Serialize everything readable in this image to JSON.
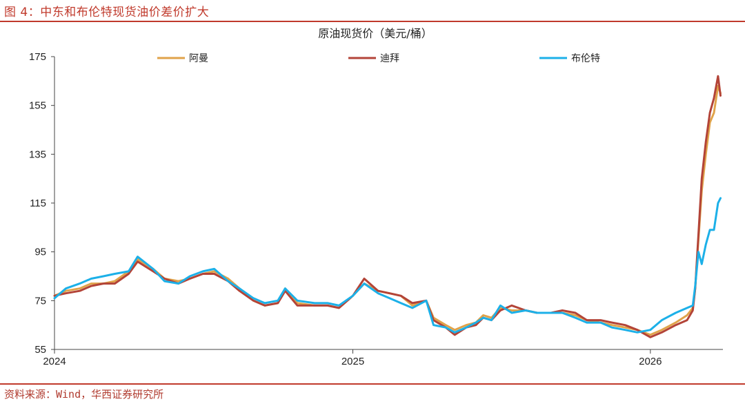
{
  "figure_title": "图 4：中东和布伦特现货油价差价扩大",
  "source": "资料来源：Wind，华西证券研究所",
  "chart_data": {
    "type": "line",
    "title": "原油现货价（美元/桶）",
    "xlabel": "",
    "ylabel": "",
    "x_ticks": [
      "2024",
      "2025",
      "2026"
    ],
    "x_tick_dates": [
      "2024-01-01",
      "2025-01-01",
      "2026-01-01"
    ],
    "xlim": [
      "2024-01-01",
      "2026-03-31"
    ],
    "ylim": [
      55,
      175
    ],
    "y_ticks": [
      55,
      75,
      95,
      115,
      135,
      155,
      175
    ],
    "grid": false,
    "legend_position": "top",
    "series": [
      {
        "name": "阿曼",
        "color": "#e0a34a",
        "x": [
          "2024-01-01",
          "2024-01-15",
          "2024-02-01",
          "2024-02-15",
          "2024-03-01",
          "2024-03-15",
          "2024-04-01",
          "2024-04-12",
          "2024-05-01",
          "2024-05-15",
          "2024-06-01",
          "2024-06-15",
          "2024-07-01",
          "2024-07-15",
          "2024-08-01",
          "2024-08-15",
          "2024-09-01",
          "2024-09-15",
          "2024-10-01",
          "2024-10-10",
          "2024-10-25",
          "2024-11-15",
          "2024-12-01",
          "2024-12-15",
          "2025-01-01",
          "2025-01-15",
          "2025-02-01",
          "2025-02-15",
          "2025-03-01",
          "2025-03-15",
          "2025-04-01",
          "2025-04-10",
          "2025-04-25",
          "2025-05-06",
          "2025-05-20",
          "2025-06-01",
          "2025-06-10",
          "2025-06-20",
          "2025-07-01",
          "2025-07-15",
          "2025-08-01",
          "2025-08-15",
          "2025-09-01",
          "2025-09-15",
          "2025-10-01",
          "2025-10-15",
          "2025-11-01",
          "2025-11-15",
          "2025-12-01",
          "2025-12-16",
          "2026-01-01",
          "2026-01-15",
          "2026-02-01",
          "2026-02-15",
          "2026-02-22",
          "2026-02-25",
          "2026-03-01",
          "2026-03-05",
          "2026-03-10",
          "2026-03-15",
          "2026-03-20",
          "2026-03-25",
          "2026-03-28"
        ],
        "y": [
          77,
          79,
          80,
          82,
          82,
          83,
          87,
          92,
          88,
          84,
          83,
          84,
          86,
          87,
          84,
          80,
          75,
          73,
          74,
          80,
          74,
          73,
          73,
          72,
          77,
          82,
          79,
          78,
          77,
          73,
          75,
          68,
          65,
          63,
          65,
          66,
          69,
          68,
          72,
          71,
          71,
          70,
          70,
          70,
          69,
          67,
          66,
          65,
          64,
          63,
          61,
          63,
          66,
          69,
          72,
          80,
          100,
          120,
          135,
          148,
          152,
          163,
          160
        ]
      },
      {
        "name": "迪拜",
        "color": "#b34438",
        "x": [
          "2024-01-01",
          "2024-01-15",
          "2024-02-01",
          "2024-02-15",
          "2024-03-01",
          "2024-03-15",
          "2024-04-01",
          "2024-04-12",
          "2024-05-01",
          "2024-05-15",
          "2024-06-01",
          "2024-06-15",
          "2024-07-01",
          "2024-07-15",
          "2024-08-01",
          "2024-08-15",
          "2024-09-01",
          "2024-09-15",
          "2024-10-01",
          "2024-10-10",
          "2024-10-25",
          "2024-11-15",
          "2024-12-01",
          "2024-12-15",
          "2025-01-01",
          "2025-01-15",
          "2025-02-01",
          "2025-02-15",
          "2025-03-01",
          "2025-03-15",
          "2025-04-01",
          "2025-04-10",
          "2025-04-25",
          "2025-05-06",
          "2025-05-20",
          "2025-06-01",
          "2025-06-10",
          "2025-06-20",
          "2025-07-01",
          "2025-07-15",
          "2025-08-01",
          "2025-08-15",
          "2025-09-01",
          "2025-09-15",
          "2025-10-01",
          "2025-10-15",
          "2025-11-01",
          "2025-11-15",
          "2025-12-01",
          "2025-12-16",
          "2026-01-01",
          "2026-01-15",
          "2026-02-01",
          "2026-02-15",
          "2026-02-22",
          "2026-02-25",
          "2026-03-01",
          "2026-03-05",
          "2026-03-10",
          "2026-03-15",
          "2026-03-20",
          "2026-03-25",
          "2026-03-28"
        ],
        "y": [
          77,
          78,
          79,
          81,
          82,
          82,
          86,
          91,
          87,
          84,
          82,
          84,
          86,
          86,
          83,
          79,
          75,
          73,
          74,
          79,
          73,
          73,
          73,
          72,
          77,
          84,
          79,
          78,
          77,
          74,
          75,
          67,
          64,
          61,
          64,
          65,
          68,
          67,
          71,
          73,
          71,
          70,
          70,
          71,
          70,
          67,
          67,
          66,
          65,
          63,
          60,
          62,
          65,
          67,
          71,
          80,
          102,
          125,
          140,
          152,
          158,
          167,
          159
        ]
      },
      {
        "name": "布伦特",
        "color": "#1cb0e8",
        "x": [
          "2024-01-01",
          "2024-01-15",
          "2024-02-01",
          "2024-02-15",
          "2024-03-01",
          "2024-03-15",
          "2024-04-01",
          "2024-04-12",
          "2024-05-01",
          "2024-05-15",
          "2024-06-01",
          "2024-06-15",
          "2024-07-01",
          "2024-07-15",
          "2024-08-01",
          "2024-08-15",
          "2024-09-01",
          "2024-09-15",
          "2024-10-01",
          "2024-10-10",
          "2024-10-25",
          "2024-11-15",
          "2024-12-01",
          "2024-12-15",
          "2025-01-01",
          "2025-01-15",
          "2025-02-01",
          "2025-02-15",
          "2025-03-01",
          "2025-03-15",
          "2025-04-01",
          "2025-04-10",
          "2025-04-25",
          "2025-05-06",
          "2025-05-20",
          "2025-06-01",
          "2025-06-10",
          "2025-06-20",
          "2025-07-01",
          "2025-07-15",
          "2025-08-01",
          "2025-08-15",
          "2025-09-01",
          "2025-09-15",
          "2025-10-01",
          "2025-10-15",
          "2025-11-01",
          "2025-11-15",
          "2025-12-01",
          "2025-12-16",
          "2026-01-01",
          "2026-01-15",
          "2026-02-01",
          "2026-02-15",
          "2026-02-22",
          "2026-02-25",
          "2026-03-01",
          "2026-03-05",
          "2026-03-10",
          "2026-03-15",
          "2026-03-20",
          "2026-03-25",
          "2026-03-28"
        ],
        "y": [
          76,
          80,
          82,
          84,
          85,
          86,
          87,
          93,
          88,
          83,
          82,
          85,
          87,
          88,
          83,
          80,
          76,
          74,
          75,
          80,
          75,
          74,
          74,
          73,
          77,
          82,
          78,
          76,
          74,
          72,
          75,
          65,
          64,
          62,
          64,
          66,
          68,
          67,
          73,
          70,
          71,
          70,
          70,
          70,
          68,
          66,
          66,
          64,
          63,
          62,
          63,
          67,
          70,
          72,
          73,
          81,
          95,
          90,
          98,
          104,
          104,
          115,
          117
        ]
      }
    ]
  }
}
